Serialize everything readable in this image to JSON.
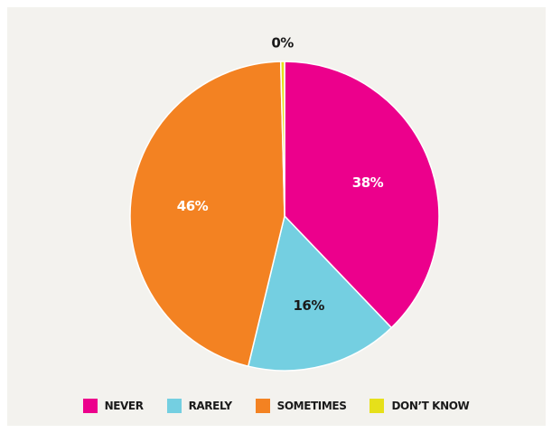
{
  "chart_data": {
    "type": "pie",
    "slices": [
      {
        "name": "NEVER",
        "value": 38,
        "label": "38%",
        "color": "#ec008c"
      },
      {
        "name": "RARELY",
        "value": 16,
        "label": "16%",
        "color": "#74cfe1"
      },
      {
        "name": "SOMETIMES",
        "value": 46,
        "label": "46%",
        "color": "#f38222"
      },
      {
        "name": "DON’T KNOW",
        "value": 0,
        "label": "0%",
        "color": "#e6e01a"
      }
    ],
    "legend_placement": "bottom"
  }
}
